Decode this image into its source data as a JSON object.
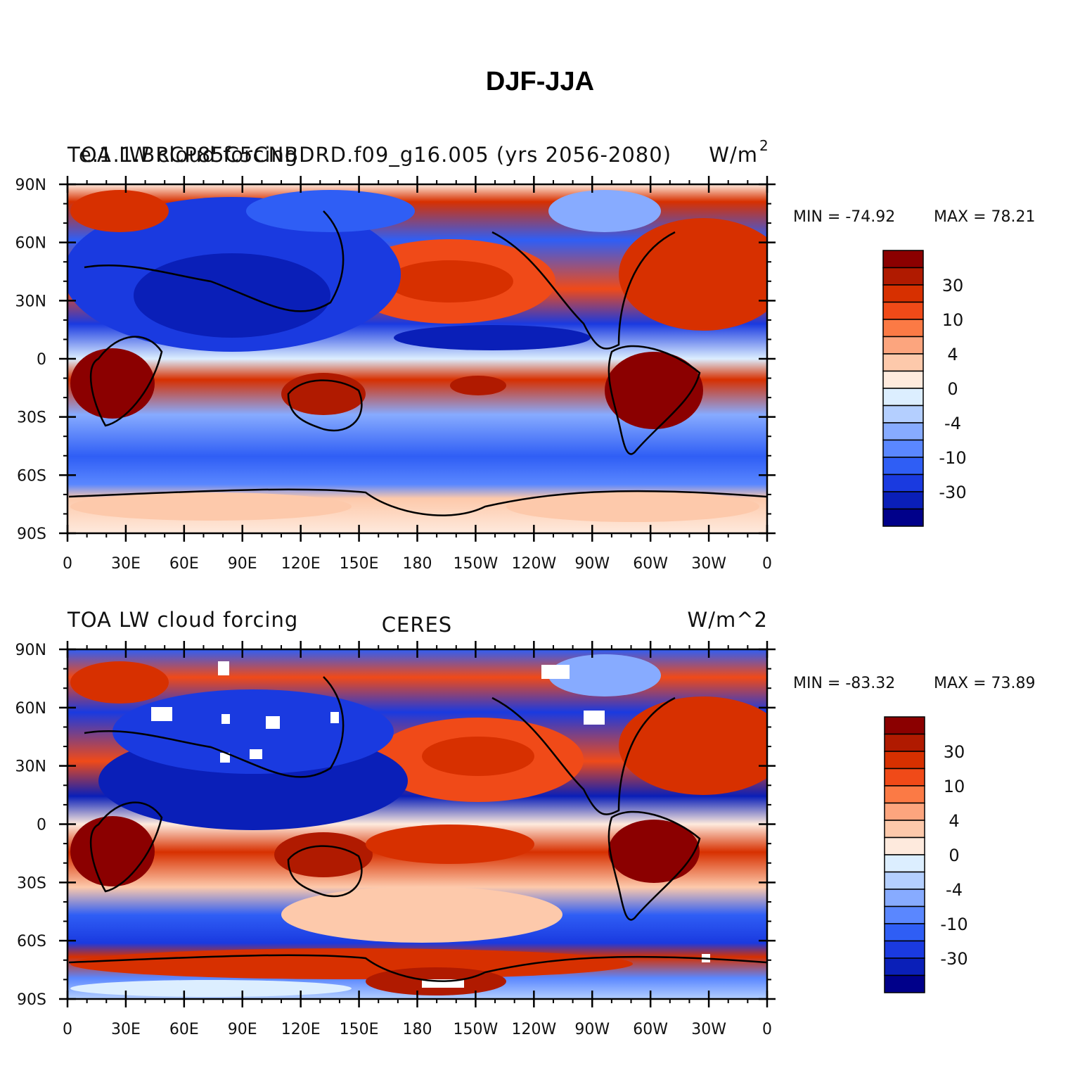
{
  "title": "DJF-JJA",
  "panels": [
    {
      "left_label": "TOA LW cloud forcing",
      "overlay_label": "e.1.1.BRCP85C5CNBDRD.f09_g16.005 (yrs 2056-2080)",
      "units": "W/m",
      "units_sup": "2",
      "min_text": "MIN = -74.92",
      "max_text": "MAX =  78.21",
      "colorbar_labels": [
        "30",
        "10",
        "4",
        "0",
        "-4",
        "-10",
        "-30"
      ]
    },
    {
      "left_label": "TOA LW cloud forcing",
      "center_label": "CERES",
      "units": "W/m^2",
      "min_text": "MIN = -83.32",
      "max_text": "MAX =  73.89",
      "colorbar_labels": [
        "30",
        "10",
        "4",
        "0",
        "-4",
        "-10",
        "-30"
      ]
    }
  ],
  "axes": {
    "lat_ticks": [
      "90N",
      "60N",
      "30N",
      "0",
      "30S",
      "60S",
      "90S"
    ],
    "lon_ticks": [
      "0",
      "30E",
      "60E",
      "90E",
      "120E",
      "150E",
      "180",
      "150W",
      "120W",
      "90W",
      "60W",
      "30W",
      "0"
    ]
  },
  "colorbar_colors": [
    "#8b0000",
    "#b01a00",
    "#d73000",
    "#f04a18",
    "#fb7a45",
    "#fca57e",
    "#fdc9ab",
    "#feeadd",
    "#dceeff",
    "#b4cfff",
    "#87abff",
    "#5a87ff",
    "#2f5ef5",
    "#1a3ae0",
    "#0a1fb8",
    "#00008a"
  ]
}
